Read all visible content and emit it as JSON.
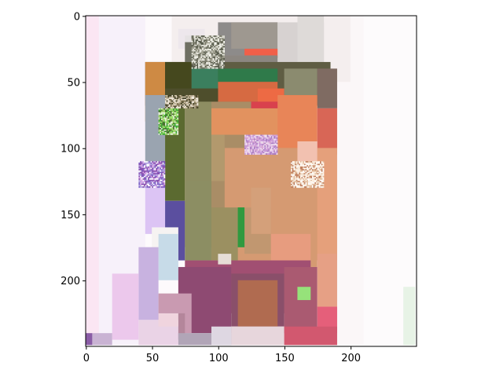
{
  "chart_data": {
    "type": "heatmap",
    "title": "",
    "xlabel": "",
    "ylabel": "",
    "xlim": [
      0,
      249
    ],
    "ylim": [
      249,
      0
    ],
    "x_ticks": [
      {
        "value": 0,
        "label": "0"
      },
      {
        "value": 50,
        "label": "50"
      },
      {
        "value": 100,
        "label": "100"
      },
      {
        "value": 150,
        "label": "150"
      },
      {
        "value": 200,
        "label": "200"
      }
    ],
    "y_ticks": [
      {
        "value": 0,
        "label": "0"
      },
      {
        "value": 50,
        "label": "50"
      },
      {
        "value": 100,
        "label": "100"
      },
      {
        "value": 150,
        "label": "150"
      },
      {
        "value": 200,
        "label": "200"
      }
    ],
    "grid": false,
    "regions": [
      {
        "x": [
          0,
          249
        ],
        "y": [
          0,
          249
        ],
        "color": "#fdfafc"
      },
      {
        "x": [
          0,
          45
        ],
        "y": [
          0,
          249
        ],
        "color": "#f7f1fa"
      },
      {
        "x": [
          0,
          10
        ],
        "y": [
          0,
          249
        ],
        "color": "#fbe6f3"
      },
      {
        "x": [
          160,
          249
        ],
        "y": [
          0,
          249
        ],
        "color": "#fbf7f8"
      },
      {
        "x": [
          210,
          249
        ],
        "y": [
          0,
          249
        ],
        "color": "#fdfbfc"
      },
      {
        "x": [
          240,
          249
        ],
        "y": [
          205,
          249
        ],
        "color": "#e7f3e6"
      },
      {
        "x": [
          65,
          200
        ],
        "y": [
          0,
          50
        ],
        "color": "#f4eeee"
      },
      {
        "x": [
          70,
          90
        ],
        "y": [
          10,
          25
        ],
        "color": "#ede7ec"
      },
      {
        "x": [
          75,
          140
        ],
        "y": [
          15,
          40
        ],
        "color": "#e5e2e3"
      },
      {
        "x": [
          80,
          100
        ],
        "y": [
          15,
          40
        ],
        "color": "#cfcfc6"
      },
      {
        "x": [
          100,
          145
        ],
        "y": [
          5,
          30
        ],
        "color": "#8d8b8a"
      },
      {
        "x": [
          110,
          145
        ],
        "y": [
          5,
          25
        ],
        "color": "#9e9890"
      },
      {
        "x": [
          145,
          180
        ],
        "y": [
          5,
          65
        ],
        "color": "#d7d2d1"
      },
      {
        "x": [
          160,
          180
        ],
        "y": [
          0,
          55
        ],
        "color": "#dedad8"
      },
      {
        "x": [
          75,
          95
        ],
        "y": [
          20,
          35
        ],
        "color": "#6f7063"
      },
      {
        "x": [
          85,
          95
        ],
        "y": [
          20,
          35
        ],
        "color": "#d8d8d0"
      },
      {
        "x": [
          120,
          145
        ],
        "y": [
          25,
          32
        ],
        "color": "#f15f49"
      },
      {
        "x": [
          100,
          145
        ],
        "y": [
          30,
          45
        ],
        "color": "#8c8781"
      },
      {
        "x": [
          45,
          185
        ],
        "y": [
          35,
          68
        ],
        "color": "#5f5d43"
      },
      {
        "x": [
          45,
          60
        ],
        "y": [
          35,
          80
        ],
        "color": "#ce8a44"
      },
      {
        "x": [
          60,
          80
        ],
        "y": [
          35,
          60
        ],
        "color": "#45481e"
      },
      {
        "x": [
          80,
          100
        ],
        "y": [
          40,
          60
        ],
        "color": "#3b7f5e"
      },
      {
        "x": [
          100,
          145
        ],
        "y": [
          40,
          50
        ],
        "color": "#2f7a4a"
      },
      {
        "x": [
          100,
          145
        ],
        "y": [
          50,
          65
        ],
        "color": "#d66a42"
      },
      {
        "x": [
          130,
          150
        ],
        "y": [
          55,
          68
        ],
        "color": "#ed6a44"
      },
      {
        "x": [
          150,
          175
        ],
        "y": [
          40,
          60
        ],
        "color": "#8b8b6f"
      },
      {
        "x": [
          175,
          190
        ],
        "y": [
          40,
          70
        ],
        "color": "#7f6b62"
      },
      {
        "x": [
          60,
          100
        ],
        "y": [
          55,
          65
        ],
        "color": "#4e4e2c"
      },
      {
        "x": [
          60,
          75
        ],
        "y": [
          60,
          140
        ],
        "color": "#5b6a30"
      },
      {
        "x": [
          45,
          60
        ],
        "y": [
          60,
          120
        ],
        "color": "#9aa4b0"
      },
      {
        "x": [
          75,
          145
        ],
        "y": [
          65,
          175
        ],
        "color": "#a98d66"
      },
      {
        "x": [
          75,
          95
        ],
        "y": [
          65,
          175
        ],
        "color": "#8d8d62"
      },
      {
        "x": [
          95,
          150
        ],
        "y": [
          70,
          90
        ],
        "color": "#e2925f"
      },
      {
        "x": [
          125,
          160
        ],
        "y": [
          65,
          70
        ],
        "color": "#d9414d"
      },
      {
        "x": [
          145,
          175
        ],
        "y": [
          60,
          110
        ],
        "color": "#e88558"
      },
      {
        "x": [
          175,
          190
        ],
        "y": [
          70,
          105
        ],
        "color": "#d86656"
      },
      {
        "x": [
          170,
          190
        ],
        "y": [
          100,
          185
        ],
        "color": "#e5a07b"
      },
      {
        "x": [
          105,
          175
        ],
        "y": [
          100,
          190
        ],
        "color": "#d59a72"
      },
      {
        "x": [
          95,
          105
        ],
        "y": [
          90,
          125
        ],
        "color": "#b2996d"
      },
      {
        "x": [
          60,
          75
        ],
        "y": [
          140,
          185
        ],
        "color": "#5b4f9f"
      },
      {
        "x": [
          75,
          95
        ],
        "y": [
          125,
          185
        ],
        "color": "#8c8e63"
      },
      {
        "x": [
          95,
          115
        ],
        "y": [
          145,
          185
        ],
        "color": "#9b9061"
      },
      {
        "x": [
          115,
          120
        ],
        "y": [
          145,
          175
        ],
        "color": "#34953d"
      },
      {
        "x": [
          120,
          140
        ],
        "y": [
          145,
          180
        ],
        "color": "#c19770"
      },
      {
        "x": [
          140,
          170
        ],
        "y": [
          165,
          195
        ],
        "color": "#e79c7f"
      },
      {
        "x": [
          45,
          60
        ],
        "y": [
          130,
          165
        ],
        "color": "#dcc4f4"
      },
      {
        "x": [
          50,
          70
        ],
        "y": [
          160,
          185
        ],
        "color": "#f6f3f2"
      },
      {
        "x": [
          55,
          70
        ],
        "y": [
          165,
          200
        ],
        "color": "#c7dbe8"
      },
      {
        "x": [
          40,
          55
        ],
        "y": [
          175,
          230
        ],
        "color": "#c8b2e0"
      },
      {
        "x": [
          20,
          40
        ],
        "y": [
          195,
          245
        ],
        "color": "#ecc8ec"
      },
      {
        "x": [
          75,
          170
        ],
        "y": [
          185,
          225
        ],
        "color": "#a14f72"
      },
      {
        "x": [
          70,
          110
        ],
        "y": [
          190,
          240
        ],
        "color": "#8e4a72"
      },
      {
        "x": [
          110,
          150
        ],
        "y": [
          195,
          235
        ],
        "color": "#8a4f6a"
      },
      {
        "x": [
          115,
          145
        ],
        "y": [
          200,
          235
        ],
        "color": "#b06b50"
      },
      {
        "x": [
          150,
          175
        ],
        "y": [
          190,
          240
        ],
        "color": "#aa5a71"
      },
      {
        "x": [
          175,
          190
        ],
        "y": [
          180,
          220
        ],
        "color": "#e6a085"
      },
      {
        "x": [
          175,
          190
        ],
        "y": [
          220,
          240
        ],
        "color": "#e55f7a"
      },
      {
        "x": [
          55,
          80
        ],
        "y": [
          210,
          240
        ],
        "color": "#c99ab1"
      },
      {
        "x": [
          60,
          75
        ],
        "y": [
          225,
          245
        ],
        "color": "#b4869b"
      },
      {
        "x": [
          40,
          70
        ],
        "y": [
          230,
          249
        ],
        "color": "#ead3e6"
      },
      {
        "x": [
          110,
          150
        ],
        "y": [
          235,
          249
        ],
        "color": "#e7d6dc"
      },
      {
        "x": [
          150,
          190
        ],
        "y": [
          235,
          249
        ],
        "color": "#d2586f"
      },
      {
        "x": [
          70,
          110
        ],
        "y": [
          240,
          249
        ],
        "color": "#b1a5b7"
      },
      {
        "x": [
          0,
          5
        ],
        "y": [
          240,
          249
        ],
        "color": "#8a5ca6"
      },
      {
        "x": [
          5,
          20
        ],
        "y": [
          240,
          249
        ],
        "color": "#c9b3d3"
      },
      {
        "x": [
          95,
          110
        ],
        "y": [
          235,
          249
        ],
        "color": "#ded7e2"
      },
      {
        "x": [
          160,
          175
        ],
        "y": [
          95,
          110
        ],
        "color": "#f2c1b0"
      },
      {
        "x": [
          100,
          110
        ],
        "y": [
          180,
          188
        ],
        "color": "#e6ded6"
      },
      {
        "x": [
          115,
          120
        ],
        "y": [
          145,
          175
        ],
        "color": "#2f9a3f"
      },
      {
        "x": [
          125,
          140
        ],
        "y": [
          130,
          165
        ],
        "color": "#d4a07a"
      },
      {
        "x": [
          55,
          70
        ],
        "y": [
          225,
          235
        ],
        "color": "#f0d4de"
      },
      {
        "x": [
          160,
          170
        ],
        "y": [
          205,
          215
        ],
        "color": "#96e27a"
      }
    ],
    "noise_patches": [
      {
        "x": [
          55,
          70
        ],
        "y": [
          70,
          90
        ],
        "colors": [
          "#3ea93a",
          "#9de26a",
          "#e8f0de",
          "#4b6d2e",
          "#a1d06a"
        ]
      },
      {
        "x": [
          120,
          145
        ],
        "y": [
          90,
          105
        ],
        "colors": [
          "#c89ad9",
          "#e2c1ea",
          "#ab7fc3",
          "#f0e0f0",
          "#d6a2d5"
        ]
      },
      {
        "x": [
          155,
          180
        ],
        "y": [
          110,
          130
        ],
        "colors": [
          "#f6eadc",
          "#ffffff",
          "#e3bfa0",
          "#c08060",
          "#fff3e6"
        ]
      },
      {
        "x": [
          40,
          60
        ],
        "y": [
          110,
          130
        ],
        "colors": [
          "#7c63c6",
          "#d8a8e6",
          "#ffffff",
          "#8a4fb0",
          "#b0a0e0"
        ]
      },
      {
        "x": [
          80,
          105
        ],
        "y": [
          15,
          40
        ],
        "colors": [
          "#d6d6cc",
          "#787868",
          "#f4f4ec",
          "#a0a090",
          "#55594a"
        ]
      },
      {
        "x": [
          60,
          85
        ],
        "y": [
          60,
          70
        ],
        "colors": [
          "#b4a890",
          "#f0e8dc",
          "#7c7050",
          "#d0c4a8",
          "#3b3b22"
        ]
      }
    ]
  }
}
